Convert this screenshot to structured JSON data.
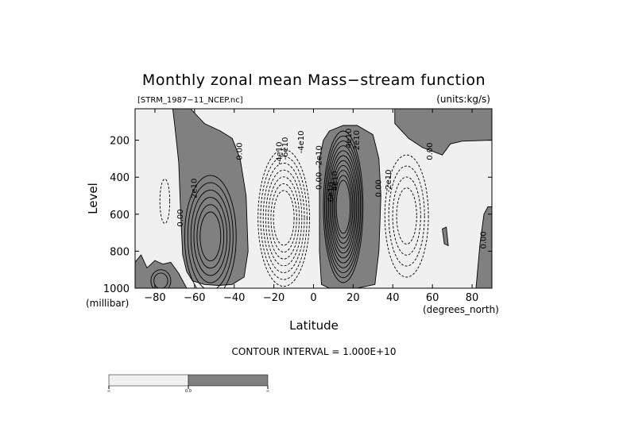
{
  "chart_data": {
    "type": "contour",
    "title": "Monthly zonal mean Mass−stream function",
    "source_file": "[STRM_1987−11_NCEP.nc]",
    "units": "(units:kg/s)",
    "xlabel": "Latitude",
    "x_units": "(degrees_north)",
    "ylabel": "Level",
    "y_units": "(millibar)",
    "xlim": [
      -90,
      90
    ],
    "ylim": [
      1000,
      30
    ],
    "x_ticks": [
      -80,
      -60,
      -40,
      -20,
      0,
      20,
      40,
      60,
      80
    ],
    "x_tick_labels": [
      "−80",
      "−60",
      "−40",
      "−20",
      "0",
      "20",
      "40",
      "60",
      "80"
    ],
    "y_ticks": [
      200,
      400,
      600,
      800,
      1000
    ],
    "y_tick_labels": [
      "200",
      "400",
      "600",
      "800",
      "1000"
    ],
    "contour_interval": "CONTOUR INTERVAL = 1.000E+10",
    "shading": {
      "negative_color": "#f0f0f0",
      "positive_color": "#808080",
      "colorbar_labels": [
        "∞",
        "0.0",
        "∞"
      ]
    },
    "contour_labels": [
      {
        "text": "2e10",
        "lat": -59,
        "lev": 460
      },
      {
        "text": "0.00",
        "lat": -66,
        "lev": 620
      },
      {
        "text": "0.00",
        "lat": -36,
        "lev": 260
      },
      {
        "text": "-4e10",
        "lat": -16,
        "lev": 270
      },
      {
        "text": "-6e10",
        "lat": -13,
        "lev": 245
      },
      {
        "text": "-4e10",
        "lat": -5,
        "lev": 210
      },
      {
        "text": "-2e10",
        "lat": 4,
        "lev": 290
      },
      {
        "text": "0.00",
        "lat": 4,
        "lev": 420
      },
      {
        "text": "6e10",
        "lat": 10,
        "lev": 480
      },
      {
        "text": "4e10",
        "lat": 12,
        "lev": 420
      },
      {
        "text": "2e10",
        "lat": 23,
        "lev": 200
      },
      {
        "text": "4e10",
        "lat": 19,
        "lev": 190
      },
      {
        "text": "0.00",
        "lat": 34,
        "lev": 460
      },
      {
        "text": "-2e10",
        "lat": 39,
        "lev": 420
      },
      {
        "text": "0.00",
        "lat": 60,
        "lev": 260
      },
      {
        "text": "0.00",
        "lat": 87,
        "lev": 740
      }
    ],
    "cells": [
      {
        "lat": -52,
        "lev": 720,
        "half_lat": 13,
        "half_lev": 330,
        "n": 6,
        "step": 0.12,
        "sign": 1
      },
      {
        "lat": -75,
        "lev": 530,
        "half_lat": 2.5,
        "half_lev": 120,
        "n": 1,
        "step": 0.5,
        "sign": -1
      },
      {
        "lat": -15,
        "lev": 620,
        "half_lat": 13,
        "half_lev": 370,
        "n": 7,
        "step": 0.1,
        "sign": -1
      },
      {
        "lat": 15,
        "lev": 560,
        "half_lat": 10,
        "half_lev": 410,
        "n": 11,
        "step": 0.065,
        "sign": 1
      },
      {
        "lat": 47,
        "lev": 610,
        "half_lat": 11,
        "half_lev": 330,
        "n": 4,
        "step": 0.18,
        "sign": -1
      },
      {
        "lat": -77,
        "lev": 960,
        "half_lat": 5,
        "half_lev": 60,
        "n": 2,
        "step": 0.3,
        "sign": 1
      }
    ]
  }
}
